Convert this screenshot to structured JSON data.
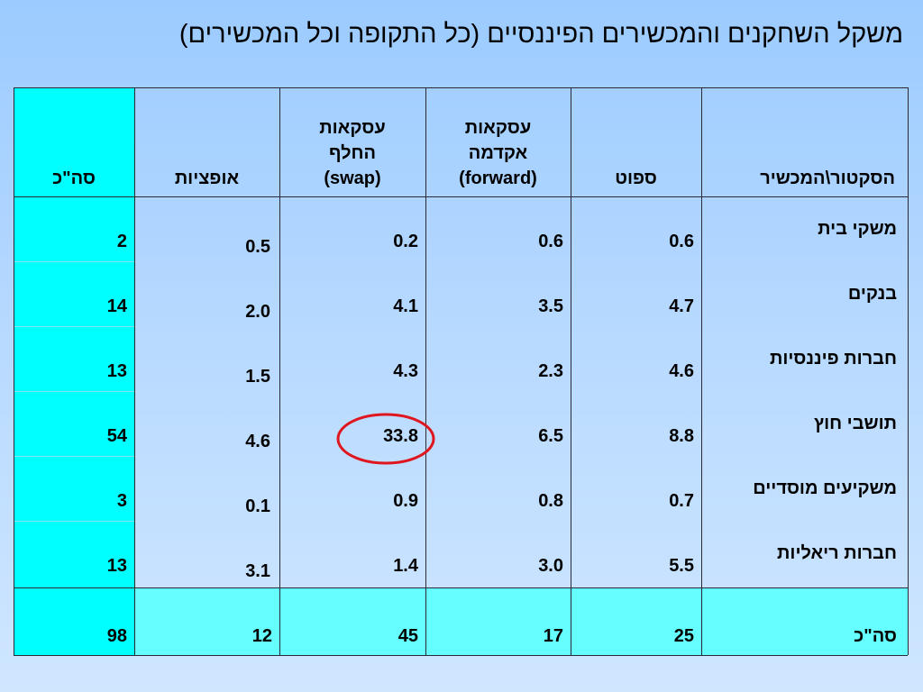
{
  "title": "משקל השחקנים והמכשירים הפיננסיים (כל התקופה וכל המכשירים)",
  "table": {
    "header": [
      "הסקטור\\המכשיר",
      "ספוט",
      "עסקאות\nאקדמה\n(forward)",
      "עסקאות\nהחלף\n(swap)",
      "אופציות",
      "סה\"כ"
    ],
    "rows": [
      [
        "משקי בית",
        "0.6",
        "0.6",
        "0.2",
        "0.5",
        "2"
      ],
      [
        "בנקים",
        "4.7",
        "3.5",
        "4.1",
        "2.0",
        "14"
      ],
      [
        "חברות פיננסיות",
        "4.6",
        "2.3",
        "4.3",
        "1.5",
        "13"
      ],
      [
        "תושבי חוץ",
        "8.8",
        "6.5",
        "33.8",
        "4.6",
        "54"
      ],
      [
        "משקיעים מוסדיים",
        "0.7",
        "0.8",
        "0.9",
        "0.1",
        "3"
      ],
      [
        "חברות ריאליות",
        "5.5",
        "3.0",
        "1.4",
        "3.1",
        "13"
      ]
    ],
    "total": [
      "סה\"כ",
      "25",
      "17",
      "45",
      "12",
      "98"
    ]
  }
}
